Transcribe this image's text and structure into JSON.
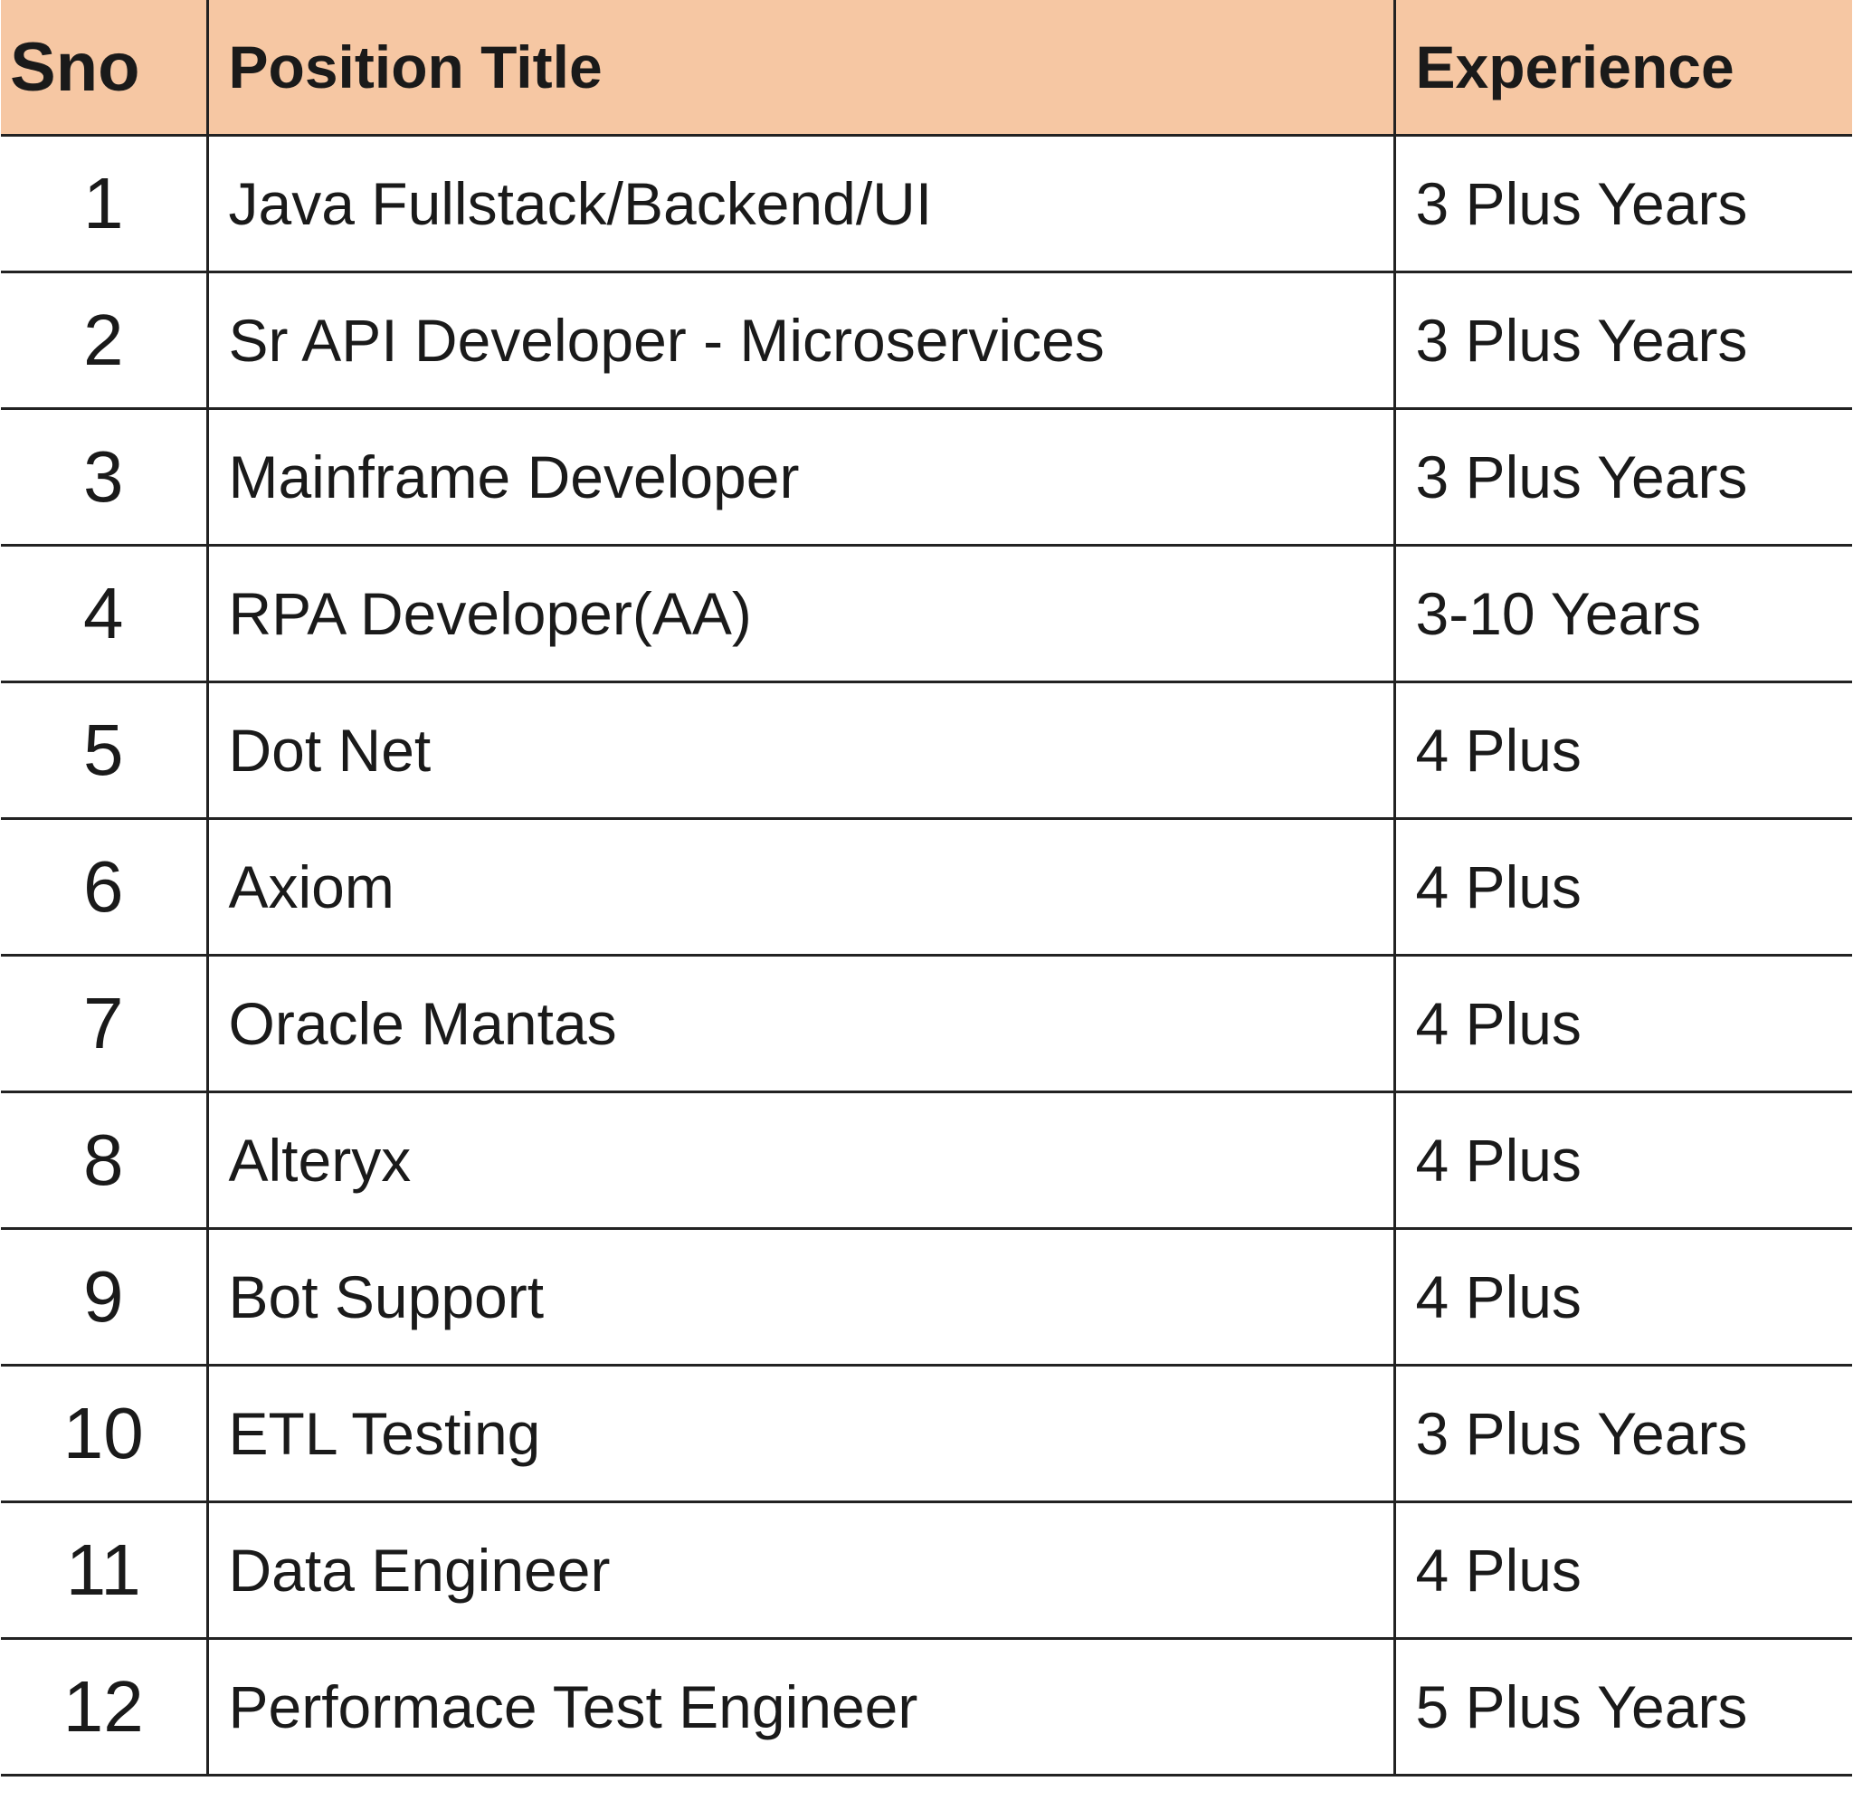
{
  "table": {
    "header": [
      "Sno",
      "Position Title",
      "Experience"
    ],
    "rows": [
      [
        1,
        "Java Fullstack/Backend/UI",
        "3 Plus Years"
      ],
      [
        2,
        "Sr API Developer - Microservices",
        "3 Plus Years"
      ],
      [
        3,
        "Mainframe Developer",
        "3 Plus Years"
      ],
      [
        4,
        "RPA Developer(AA)",
        "3-10 Years"
      ],
      [
        5,
        "Dot Net",
        "4 Plus"
      ],
      [
        6,
        "Axiom",
        "4 Plus"
      ],
      [
        7,
        "Oracle Mantas",
        "4 Plus"
      ],
      [
        8,
        "Alteryx",
        "4 Plus"
      ],
      [
        9,
        "Bot Support",
        "4 Plus"
      ],
      [
        10,
        "ETL Testing",
        "3 Plus Years"
      ],
      [
        11,
        "Data Engineer",
        "4 Plus"
      ],
      [
        12,
        "Performace Test Engineer",
        "5 Plus Years"
      ]
    ]
  }
}
